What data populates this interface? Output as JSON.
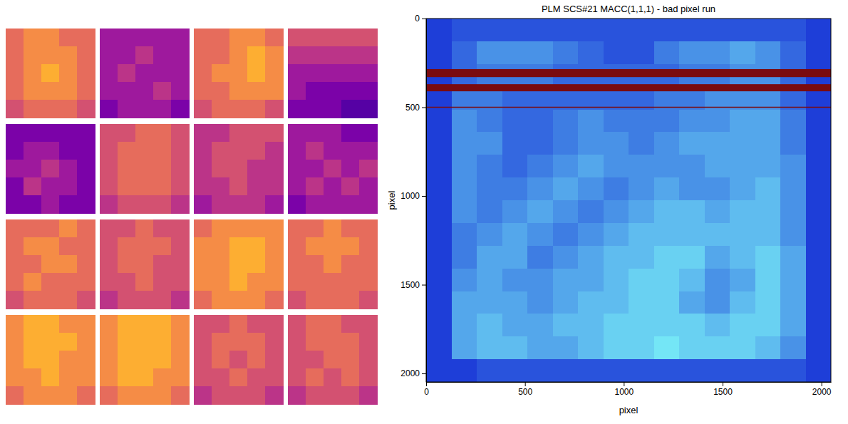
{
  "chart_data": [
    {
      "type": "image_grid",
      "panels": [
        {
          "cells": [
            [
              6,
              7,
              7,
              6,
              6
            ],
            [
              6,
              7,
              7,
              7,
              6
            ],
            [
              6,
              7,
              8,
              7,
              6
            ],
            [
              6,
              7,
              7,
              7,
              6
            ],
            [
              5,
              6,
              6,
              6,
              5
            ]
          ]
        },
        {
          "cells": [
            [
              3,
              3,
              3,
              3,
              3
            ],
            [
              3,
              3,
              4,
              3,
              3
            ],
            [
              3,
              4,
              3,
              3,
              3
            ],
            [
              3,
              3,
              3,
              4,
              3
            ],
            [
              2,
              3,
              3,
              3,
              2
            ]
          ]
        },
        {
          "cells": [
            [
              6,
              6,
              7,
              7,
              6
            ],
            [
              6,
              6,
              7,
              8,
              7
            ],
            [
              6,
              7,
              7,
              8,
              7
            ],
            [
              6,
              6,
              7,
              7,
              7
            ],
            [
              5,
              6,
              6,
              6,
              5
            ]
          ]
        },
        {
          "cells": [
            [
              5,
              5,
              5,
              5,
              5
            ],
            [
              4,
              4,
              4,
              4,
              4
            ],
            [
              3,
              3,
              3,
              3,
              3
            ],
            [
              3,
              2,
              2,
              2,
              2
            ],
            [
              2,
              2,
              2,
              1,
              1
            ]
          ]
        },
        {
          "cells": [
            [
              2,
              2,
              2,
              2,
              2
            ],
            [
              2,
              3,
              3,
              2,
              2
            ],
            [
              3,
              3,
              4,
              3,
              2
            ],
            [
              2,
              4,
              3,
              3,
              2
            ],
            [
              2,
              2,
              3,
              2,
              2
            ]
          ]
        },
        {
          "cells": [
            [
              5,
              5,
              6,
              6,
              5
            ],
            [
              5,
              6,
              6,
              6,
              5
            ],
            [
              5,
              6,
              6,
              6,
              5
            ],
            [
              5,
              6,
              6,
              6,
              5
            ],
            [
              4,
              5,
              5,
              5,
              4
            ]
          ]
        },
        {
          "cells": [
            [
              4,
              4,
              5,
              5,
              5
            ],
            [
              4,
              5,
              5,
              5,
              4
            ],
            [
              4,
              5,
              5,
              4,
              4
            ],
            [
              4,
              4,
              5,
              4,
              4
            ],
            [
              3,
              4,
              4,
              4,
              3
            ]
          ]
        },
        {
          "cells": [
            [
              3,
              3,
              3,
              2,
              2
            ],
            [
              3,
              4,
              3,
              3,
              3
            ],
            [
              3,
              3,
              4,
              3,
              4
            ],
            [
              3,
              4,
              3,
              4,
              3
            ],
            [
              2,
              3,
              3,
              3,
              3
            ]
          ]
        },
        {
          "cells": [
            [
              6,
              6,
              6,
              7,
              6
            ],
            [
              6,
              7,
              7,
              6,
              6
            ],
            [
              6,
              6,
              7,
              7,
              6
            ],
            [
              6,
              7,
              6,
              6,
              6
            ],
            [
              5,
              6,
              6,
              6,
              5
            ]
          ]
        },
        {
          "cells": [
            [
              5,
              5,
              6,
              5,
              5
            ],
            [
              5,
              6,
              6,
              6,
              5
            ],
            [
              5,
              6,
              6,
              5,
              5
            ],
            [
              5,
              5,
              6,
              5,
              5
            ],
            [
              4,
              5,
              5,
              5,
              4
            ]
          ]
        },
        {
          "cells": [
            [
              6,
              7,
              7,
              7,
              7
            ],
            [
              7,
              7,
              8,
              8,
              7
            ],
            [
              7,
              7,
              8,
              8,
              7
            ],
            [
              7,
              7,
              8,
              7,
              7
            ],
            [
              6,
              7,
              7,
              7,
              6
            ]
          ]
        },
        {
          "cells": [
            [
              6,
              6,
              7,
              6,
              6
            ],
            [
              6,
              7,
              7,
              7,
              6
            ],
            [
              6,
              6,
              7,
              6,
              6
            ],
            [
              6,
              6,
              6,
              6,
              6
            ],
            [
              5,
              6,
              6,
              6,
              5
            ]
          ]
        },
        {
          "cells": [
            [
              7,
              8,
              8,
              7,
              7
            ],
            [
              7,
              8,
              8,
              8,
              7
            ],
            [
              7,
              8,
              8,
              7,
              7
            ],
            [
              7,
              7,
              8,
              7,
              7
            ],
            [
              6,
              7,
              7,
              7,
              6
            ]
          ]
        },
        {
          "cells": [
            [
              7,
              8,
              8,
              8,
              7
            ],
            [
              7,
              8,
              8,
              8,
              7
            ],
            [
              7,
              8,
              8,
              8,
              7
            ],
            [
              7,
              8,
              8,
              7,
              7
            ],
            [
              6,
              7,
              7,
              7,
              6
            ]
          ]
        },
        {
          "cells": [
            [
              5,
              5,
              6,
              5,
              5
            ],
            [
              5,
              6,
              6,
              6,
              5
            ],
            [
              5,
              6,
              5,
              6,
              5
            ],
            [
              5,
              5,
              6,
              5,
              5
            ],
            [
              4,
              5,
              5,
              5,
              4
            ]
          ]
        },
        {
          "cells": [
            [
              5,
              6,
              6,
              5,
              5
            ],
            [
              5,
              6,
              6,
              6,
              5
            ],
            [
              5,
              5,
              6,
              6,
              5
            ],
            [
              5,
              6,
              5,
              6,
              5
            ],
            [
              4,
              5,
              5,
              5,
              4
            ]
          ]
        }
      ]
    },
    {
      "type": "heatmap",
      "title": "PLM SCS#21 MACC(1,1,1) - bad pixel run",
      "x_label": "pixel",
      "y_label": "pixel",
      "xlim": [
        0,
        2048
      ],
      "xticks": [
        0,
        500,
        1000,
        1500,
        2000
      ],
      "ylim": [
        2048,
        0
      ],
      "yticks": [
        0,
        500,
        1000,
        1500,
        2000
      ],
      "color": "#7a0b10",
      "bad_rows": [
        [
          285,
          330
        ],
        [
          370,
          410
        ],
        [
          497,
          503
        ]
      ],
      "cells": [
        [
          1,
          2,
          2,
          2,
          2,
          2,
          2,
          2,
          2,
          2,
          2,
          2,
          2,
          2,
          2,
          1
        ],
        [
          1,
          3,
          5,
          5,
          5,
          4,
          3,
          2,
          2,
          4,
          5,
          5,
          6,
          5,
          3,
          1
        ],
        [
          1,
          3,
          4,
          4,
          4,
          3,
          3,
          3,
          3,
          3,
          4,
          4,
          5,
          5,
          3,
          1
        ],
        [
          1,
          4,
          4,
          3,
          3,
          3,
          3,
          3,
          3,
          4,
          4,
          5,
          5,
          5,
          3,
          1
        ],
        [
          1,
          5,
          4,
          3,
          3,
          4,
          5,
          4,
          4,
          4,
          5,
          5,
          6,
          6,
          4,
          1
        ],
        [
          1,
          5,
          5,
          3,
          3,
          4,
          5,
          5,
          4,
          5,
          6,
          6,
          6,
          6,
          4,
          1
        ],
        [
          1,
          5,
          4,
          3,
          4,
          5,
          6,
          5,
          5,
          5,
          5,
          6,
          6,
          6,
          5,
          1
        ],
        [
          1,
          5,
          4,
          4,
          5,
          6,
          5,
          4,
          5,
          6,
          5,
          5,
          6,
          7,
          5,
          1
        ],
        [
          1,
          5,
          4,
          5,
          6,
          5,
          4,
          5,
          6,
          7,
          7,
          6,
          7,
          7,
          5,
          1
        ],
        [
          1,
          4,
          5,
          6,
          5,
          4,
          5,
          6,
          7,
          7,
          7,
          7,
          7,
          7,
          5,
          1
        ],
        [
          1,
          4,
          6,
          6,
          4,
          5,
          6,
          7,
          7,
          8,
          8,
          6,
          7,
          8,
          6,
          1
        ],
        [
          1,
          5,
          6,
          5,
          5,
          6,
          6,
          7,
          8,
          8,
          7,
          5,
          6,
          8,
          6,
          1
        ],
        [
          1,
          6,
          6,
          6,
          5,
          6,
          7,
          7,
          8,
          8,
          6,
          5,
          7,
          8,
          6,
          1
        ],
        [
          1,
          6,
          7,
          6,
          6,
          7,
          7,
          8,
          8,
          8,
          8,
          7,
          8,
          8,
          6,
          1
        ],
        [
          1,
          6,
          7,
          7,
          6,
          6,
          7,
          8,
          8,
          9,
          8,
          8,
          8,
          7,
          5,
          1
        ],
        [
          1,
          1,
          2,
          2,
          2,
          2,
          2,
          2,
          2,
          2,
          2,
          2,
          2,
          2,
          2,
          1
        ]
      ]
    }
  ]
}
